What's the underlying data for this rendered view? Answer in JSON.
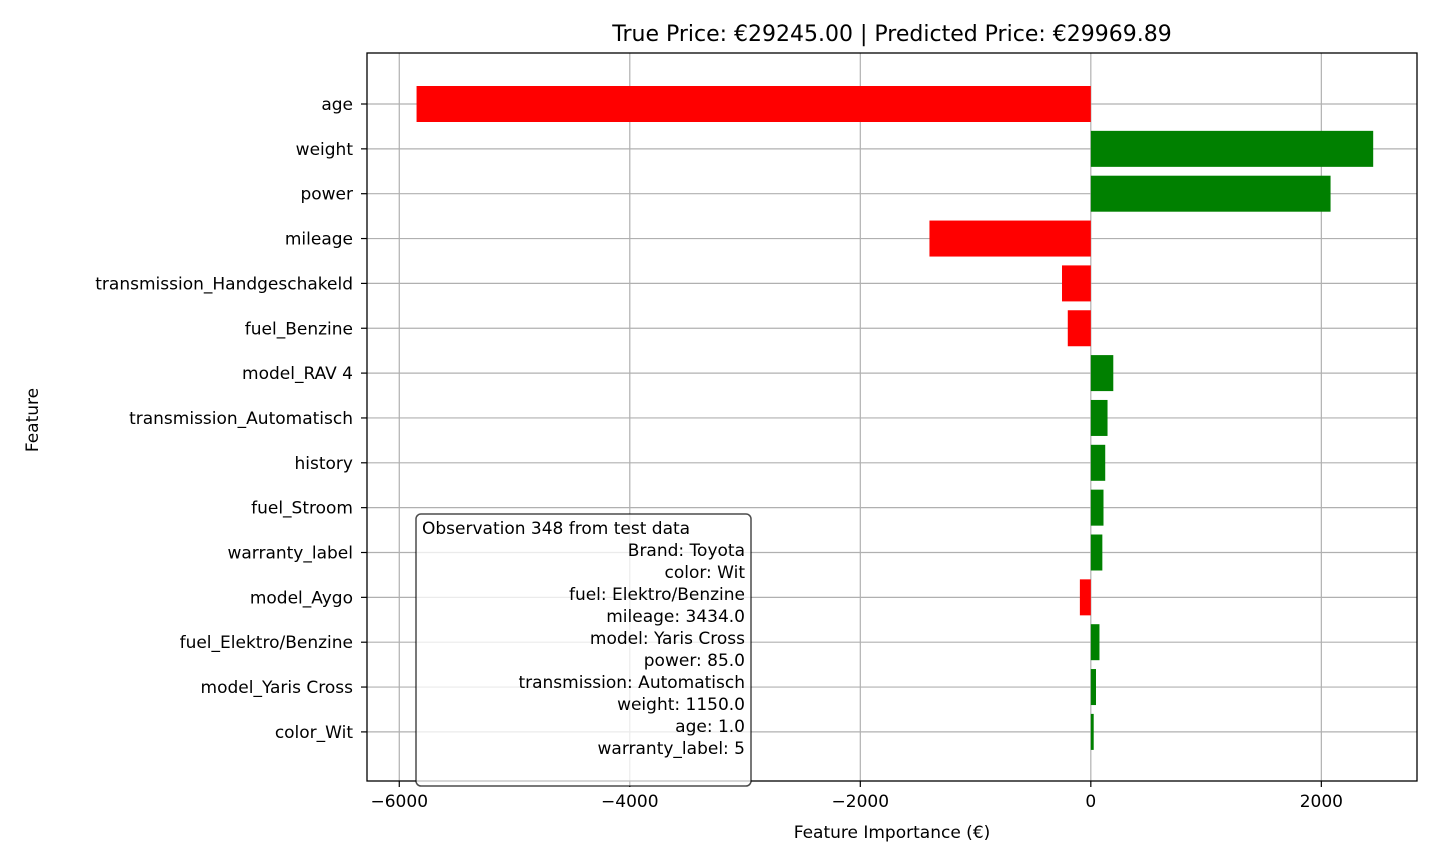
{
  "chart_data": {
    "type": "bar",
    "orientation": "horizontal",
    "title": "True Price: €29245.00 | Predicted Price: €29969.89",
    "xlabel": "Feature Importance (€)",
    "ylabel": "Feature",
    "xlim": [
      -6280,
      2830
    ],
    "xticks": [
      -6000,
      -4000,
      -2000,
      0,
      2000
    ],
    "xtick_labels": [
      "−6000",
      "−4000",
      "−2000",
      "0",
      "2000"
    ],
    "grid": true,
    "colors": {
      "positive": "#008000",
      "negative": "#ff0000"
    },
    "categories": [
      "age",
      "weight",
      "power",
      "mileage",
      "transmission_Handgeschakeld",
      "fuel_Benzine",
      "model_RAV 4",
      "transmission_Automatisch",
      "history",
      "fuel_Stroom",
      "warranty_label",
      "model_Aygo",
      "fuel_Elektro/Benzine",
      "model_Yaris Cross",
      "color_Wit"
    ],
    "values": [
      -5850,
      2450,
      2080,
      -1400,
      -250,
      -200,
      195,
      145,
      125,
      110,
      100,
      -95,
      75,
      45,
      25
    ],
    "annotation": {
      "position": "bottom-left",
      "lines": [
        "Observation 348 from test data",
        "Brand: Toyota",
        "color: Wit",
        "fuel: Elektro/Benzine",
        "mileage: 3434.0",
        "model: Yaris Cross",
        "power: 85.0",
        "transmission: Automatisch",
        "weight: 1150.0",
        "age: 1.0",
        "warranty_label: 5"
      ]
    }
  }
}
